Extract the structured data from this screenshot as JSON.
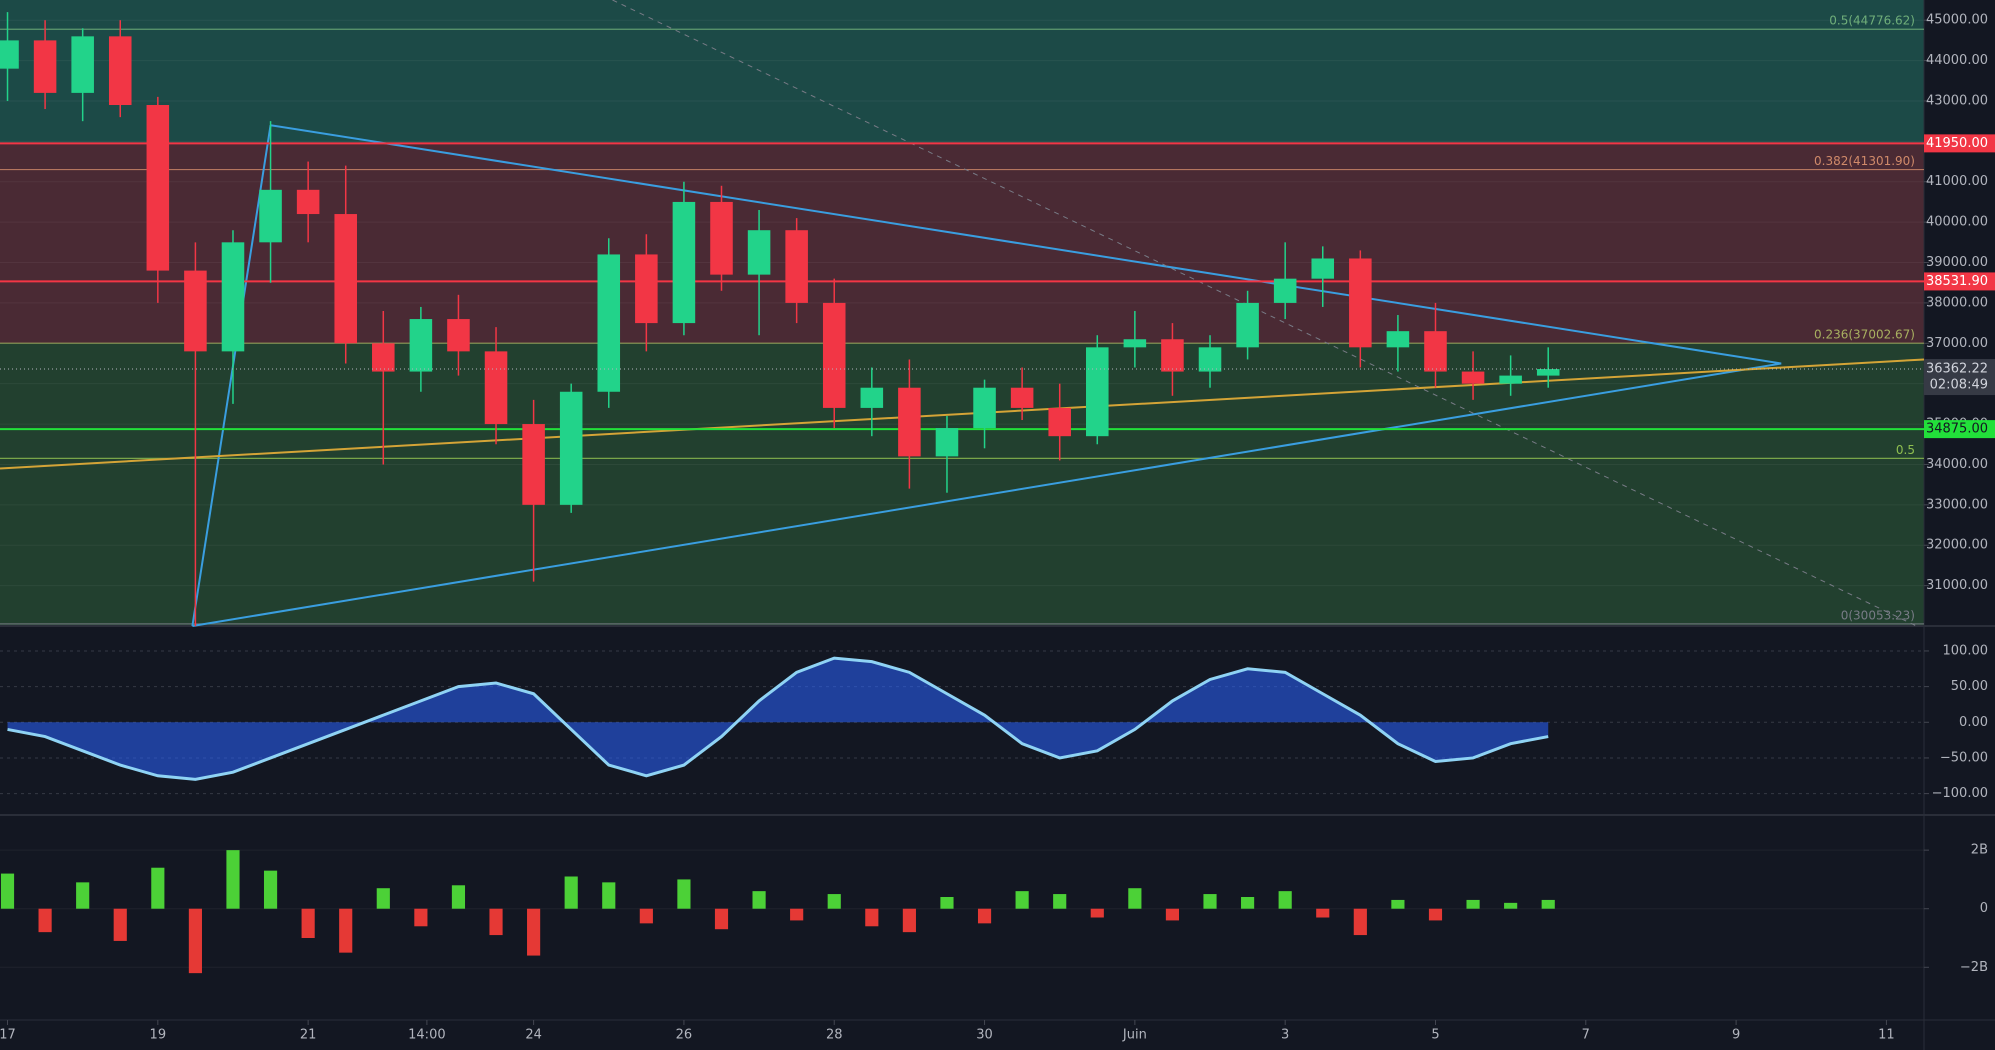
{
  "chart_data": [
    {
      "type": "candlestick",
      "x": [
        0,
        0.5,
        1,
        1.5,
        2,
        2.5,
        3,
        3.5,
        4,
        4.5,
        5,
        5.5,
        6,
        6.5,
        7,
        7.5,
        8,
        8.5,
        9,
        9.5,
        10,
        10.5,
        11,
        11.5,
        12,
        12.5,
        13,
        13.5,
        14,
        14.5,
        15,
        15.5,
        16,
        16.5,
        17,
        17.5,
        18,
        18.5,
        19,
        19.5,
        20,
        20.5
      ],
      "open": [
        43800,
        44500,
        43200,
        44600,
        42900,
        38800,
        36800,
        39500,
        40800,
        40200,
        37000,
        36300,
        37600,
        36800,
        35000,
        33000,
        35800,
        39200,
        37500,
        40500,
        38700,
        39800,
        38000,
        35400,
        35900,
        34200,
        34900,
        35900,
        35400,
        34700,
        36900,
        37100,
        36300,
        36900,
        38000,
        38600,
        39100,
        36900,
        37300,
        36300,
        36000,
        36200
      ],
      "high": [
        45200,
        45000,
        44800,
        45000,
        43100,
        39500,
        39800,
        42500,
        41500,
        41400,
        37800,
        37900,
        38200,
        37400,
        35600,
        36000,
        39600,
        39700,
        41000,
        40900,
        40300,
        40100,
        38600,
        36400,
        36600,
        35200,
        36100,
        36400,
        36000,
        37200,
        37800,
        37500,
        37200,
        38300,
        39500,
        39400,
        39300,
        37700,
        38000,
        36800,
        36700,
        36900
      ],
      "low": [
        43000,
        42800,
        42500,
        42600,
        38000,
        30000,
        35500,
        38500,
        39500,
        36500,
        34000,
        35800,
        36200,
        34500,
        31100,
        32800,
        35400,
        36800,
        37200,
        38300,
        37200,
        37500,
        34900,
        34700,
        33400,
        33300,
        34400,
        35100,
        34100,
        34500,
        36400,
        35700,
        35900,
        36600,
        37600,
        37900,
        36400,
        36300,
        35900,
        35600,
        35700,
        35900
      ],
      "close": [
        44500,
        43200,
        44600,
        42900,
        38800,
        36800,
        39500,
        40800,
        40200,
        37000,
        36300,
        37600,
        36800,
        35000,
        33000,
        35800,
        39200,
        37500,
        40500,
        38700,
        39800,
        38000,
        35400,
        35900,
        34200,
        34900,
        35900,
        35400,
        34700,
        36900,
        37100,
        36300,
        36900,
        38000,
        38600,
        39100,
        36900,
        37300,
        36300,
        36000,
        36200,
        36362.22
      ],
      "up_color": "#22d38a",
      "down_color": "#f23645",
      "xlim": [
        -0.1,
        25.5
      ],
      "ylim": [
        30000,
        45500
      ],
      "xticks": [
        {
          "value": 0,
          "label": "17"
        },
        {
          "value": 2,
          "label": "19"
        },
        {
          "value": 4,
          "label": "21"
        },
        {
          "value": 5.58,
          "label": "14:00"
        },
        {
          "value": 7,
          "label": "24"
        },
        {
          "value": 9,
          "label": "26"
        },
        {
          "value": 11,
          "label": "28"
        },
        {
          "value": 13,
          "label": "30"
        },
        {
          "value": 15,
          "label": "Juin"
        },
        {
          "value": 17,
          "label": "3"
        },
        {
          "value": 19,
          "label": "5"
        },
        {
          "value": 21,
          "label": "7"
        },
        {
          "value": 23,
          "label": "9"
        },
        {
          "value": 25,
          "label": "11"
        }
      ],
      "yticks": [
        {
          "value": 31000,
          "label": "31000.00"
        },
        {
          "value": 32000,
          "label": "32000.00"
        },
        {
          "value": 33000,
          "label": "33000.00"
        },
        {
          "value": 34000,
          "label": "34000.00"
        },
        {
          "value": 35000,
          "label": "35000.00"
        },
        {
          "value": 36000,
          "label": "36000.00"
        },
        {
          "value": 37000,
          "label": "37000.00"
        },
        {
          "value": 38000,
          "label": "38000.00"
        },
        {
          "value": 39000,
          "label": "39000.00"
        },
        {
          "value": 40000,
          "label": "40000.00"
        },
        {
          "value": 41000,
          "label": "41000.00"
        },
        {
          "value": 42000,
          "label": "42000.00"
        },
        {
          "value": 43000,
          "label": "43000.00"
        },
        {
          "value": 44000,
          "label": "44000.00"
        },
        {
          "value": 45000,
          "label": "45000.00"
        }
      ],
      "levels": [
        {
          "value": 41950,
          "label": "41950.00",
          "color": "#f23645"
        },
        {
          "value": 38531.9,
          "label": "38531.90",
          "color": "#f23645"
        },
        {
          "value": 34875,
          "label": "34875.00",
          "color": "#22e03a"
        }
      ],
      "fib_levels": [
        {
          "value": 44776.62,
          "label": "0.5(44776.62)",
          "color": "#6fae7a"
        },
        {
          "value": 41301.9,
          "label": "0.382(41301.90)",
          "color": "#d08a6a"
        },
        {
          "value": 37002.67,
          "label": "0.236(37002.67)",
          "color": "#a8b060"
        },
        {
          "value": 34150,
          "label": "0.5",
          "color": "#8fbf50"
        },
        {
          "value": 30053.23,
          "label": "0(30053.23)",
          "color": "#787b86"
        }
      ],
      "last_price": 36362.22,
      "countdown": "02:08:49",
      "trendlines": [
        {
          "color": "#3a9ee0",
          "x": [
            2.46,
            3.5
          ],
          "y": [
            30000,
            42400
          ]
        },
        {
          "color": "#3a9ee0",
          "x": [
            3.5,
            23.6
          ],
          "y": [
            42400,
            36500
          ]
        },
        {
          "color": "#3a9ee0",
          "x": [
            2.46,
            23.6
          ],
          "y": [
            30000,
            36500
          ]
        },
        {
          "color": "#d4a437",
          "x": [
            -0.1,
            25.5
          ],
          "y": [
            33900,
            36600
          ]
        },
        {
          "color": "#787b86",
          "dash": true,
          "x": [
            8.05,
            25.4
          ],
          "y": [
            45500,
            30000
          ]
        }
      ]
    },
    {
      "type": "line",
      "x": [
        0,
        0.5,
        1,
        1.5,
        2,
        2.5,
        3,
        3.5,
        4,
        4.5,
        5,
        5.5,
        6,
        6.5,
        7,
        7.5,
        8,
        8.5,
        9,
        9.5,
        10,
        10.5,
        11,
        11.5,
        12,
        12.5,
        13,
        13.5,
        14,
        14.5,
        15,
        15.5,
        16,
        16.5,
        17,
        17.5,
        18,
        18.5,
        19,
        19.5,
        20,
        20.5
      ],
      "xlim": [
        -0.1,
        25.5
      ],
      "ylim": [
        -130,
        135
      ],
      "yticks": [
        {
          "value": 100,
          "label": "100.00"
        },
        {
          "value": 50,
          "label": "50.00"
        },
        {
          "value": 0,
          "label": "0.00"
        },
        {
          "value": -50,
          "label": "−50.00"
        },
        {
          "value": -100,
          "label": "−100.00"
        }
      ],
      "series": [
        {
          "color": "#8fd3f4",
          "values": [
            -10,
            -20,
            -40,
            -60,
            -75,
            -80,
            -70,
            -50,
            -30,
            -10,
            10,
            30,
            50,
            55,
            40,
            -10,
            -60,
            -75,
            -60,
            -20,
            30,
            70,
            90,
            85,
            70,
            40,
            10,
            -30,
            -50,
            -40,
            -10,
            30,
            60,
            75,
            70,
            40,
            10,
            -30,
            -55,
            -50,
            -30,
            -20
          ]
        }
      ]
    },
    {
      "type": "bar",
      "x": [
        0,
        0.5,
        1,
        1.5,
        2,
        2.5,
        3,
        3.5,
        4,
        4.5,
        5,
        5.5,
        6,
        6.5,
        7,
        7.5,
        8,
        8.5,
        9,
        9.5,
        10,
        10.5,
        11,
        11.5,
        12,
        12.5,
        13,
        13.5,
        14,
        14.5,
        15,
        15.5,
        16,
        16.5,
        17,
        17.5,
        18,
        18.5,
        19,
        19.5,
        20,
        20.5
      ],
      "xlim": [
        -0.1,
        25.5
      ],
      "ylim": [
        -3800000000,
        3200000000
      ],
      "yticks": [
        {
          "value": 2000000000,
          "label": "2B"
        },
        0,
        {
          "value": -2000000000,
          "label": "−2B"
        }
      ],
      "up_color": "#4cd137",
      "down_color": "#e53935",
      "values": [
        1200000000,
        -800000000,
        900000000,
        -1100000000,
        1400000000,
        -2200000000,
        2000000000,
        1300000000,
        -1000000000,
        -1500000000,
        700000000,
        -600000000,
        800000000,
        -900000000,
        -1600000000,
        1100000000,
        900000000,
        -500000000,
        1000000000,
        -700000000,
        600000000,
        -400000000,
        500000000,
        -600000000,
        -800000000,
        400000000,
        -500000000,
        600000000,
        500000000,
        -300000000,
        700000000,
        -400000000,
        500000000,
        400000000,
        600000000,
        -300000000,
        -900000000,
        300000000,
        -400000000,
        300000000,
        200000000,
        300000000
      ]
    }
  ]
}
